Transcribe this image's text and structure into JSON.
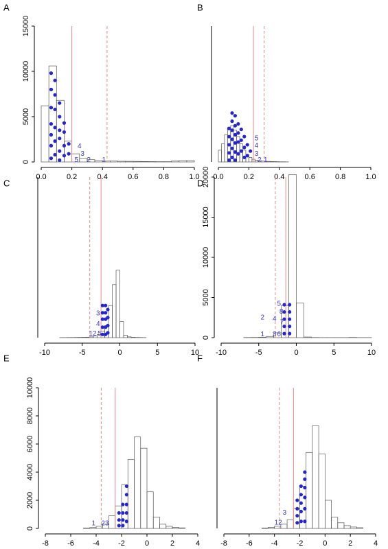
{
  "chart_data": [
    {
      "type": "histogram",
      "panel": "A",
      "bins": [
        0,
        0.05,
        0.1,
        0.15,
        0.2,
        0.25,
        0.3,
        0.35,
        0.4,
        0.45,
        0.5,
        0.55,
        0.6,
        0.65,
        0.7,
        0.75,
        0.8,
        0.85,
        0.9,
        0.95,
        1.0
      ],
      "counts": [
        6200,
        10600,
        6800,
        2300,
        900,
        400,
        250,
        150,
        120,
        100,
        80,
        70,
        60,
        50,
        40,
        30,
        30,
        100,
        150,
        150
      ],
      "xlim": [
        0,
        1.0
      ],
      "ylim": [
        0,
        15000
      ],
      "xticks": [
        {
          "value": 0,
          "label": "0.0"
        },
        {
          "value": 0.2,
          "label": "0.2"
        },
        {
          "value": 0.4,
          "label": "0.4"
        },
        {
          "value": 0.6,
          "label": "0.6"
        },
        {
          "value": 0.8,
          "label": "0.8"
        },
        {
          "value": 1.0,
          "label": "1.0"
        }
      ],
      "yticks": [
        0,
        5000,
        10000,
        15000
      ],
      "solid_line": 0.2,
      "dashed_line": 0.43,
      "points": {
        "x": [
          0.065,
          0.065,
          0.065,
          0.065,
          0.065,
          0.065,
          0.065,
          0.09,
          0.09,
          0.09,
          0.09,
          0.09,
          0.09,
          0.12,
          0.12,
          0.12,
          0.12,
          0.12,
          0.12,
          0.15,
          0.15,
          0.15,
          0.15,
          0.18,
          0.18
        ],
        "y": [
          9800,
          8000,
          6000,
          4200,
          3000,
          1800,
          400,
          9000,
          7400,
          5800,
          3800,
          2300,
          800,
          6500,
          5000,
          3500,
          2600,
          1200,
          200,
          4300,
          3300,
          1800,
          700,
          2000,
          900
        ]
      },
      "annotations": [
        {
          "label": "4",
          "x": 0.25,
          "y": 1700
        },
        {
          "label": "3",
          "x": 0.27,
          "y": 900
        },
        {
          "label": "5",
          "x": 0.23,
          "y": 200
        },
        {
          "label": "2",
          "x": 0.31,
          "y": 200
        },
        {
          "label": "1",
          "x": 0.41,
          "y": 200
        }
      ]
    },
    {
      "type": "histogram",
      "panel": "B",
      "bins": [
        0,
        0.02,
        0.04,
        0.06,
        0.08,
        0.1,
        0.12,
        0.14,
        0.16,
        0.18,
        0.2,
        0.22,
        0.24,
        0.26,
        0.28,
        0.3,
        0.32,
        0.34,
        0.36,
        0.38,
        0.4,
        0.42,
        0.44,
        0.46
      ],
      "counts": [
        1300,
        2000,
        3000,
        3800,
        4000,
        3500,
        2800,
        2000,
        1300,
        800,
        500,
        300,
        200,
        150,
        100,
        80,
        60,
        50,
        40,
        30,
        20,
        20,
        10
      ],
      "xlim": [
        0,
        1.0
      ],
      "ylim": [
        0,
        15000
      ],
      "xticks": [
        {
          "value": 0,
          "label": "0.0"
        },
        {
          "value": 0.2,
          "label": "0.2"
        },
        {
          "value": 0.4,
          "label": "0.4"
        },
        {
          "value": 0.6,
          "label": "0.6"
        },
        {
          "value": 0.8,
          "label": "0.8"
        },
        {
          "value": 1.0,
          "label": "1.0"
        }
      ],
      "solid_line": 0.23,
      "dashed_line": 0.3,
      "points": {
        "x": [
          0.07,
          0.07,
          0.07,
          0.07,
          0.07,
          0.09,
          0.09,
          0.09,
          0.09,
          0.09,
          0.09,
          0.11,
          0.11,
          0.11,
          0.11,
          0.11,
          0.11,
          0.13,
          0.13,
          0.13,
          0.13,
          0.15,
          0.15,
          0.15,
          0.17,
          0.17,
          0.17,
          0.19,
          0.19,
          0.21
        ],
        "y": [
          3700,
          2800,
          1900,
          1000,
          200,
          5400,
          4500,
          3500,
          2500,
          1500,
          500,
          5100,
          4000,
          3000,
          2100,
          1100,
          200,
          4200,
          3200,
          2200,
          900,
          3600,
          2400,
          1200,
          2800,
          1600,
          500,
          1900,
          700,
          1200
        ]
      },
      "annotations": [
        {
          "label": "5",
          "x": 0.25,
          "y": 2600
        },
        {
          "label": "4",
          "x": 0.25,
          "y": 1800
        },
        {
          "label": "3",
          "x": 0.25,
          "y": 900
        },
        {
          "label": "2",
          "x": 0.27,
          "y": 200
        },
        {
          "label": "1",
          "x": 0.31,
          "y": 200
        }
      ]
    },
    {
      "type": "histogram",
      "panel": "C",
      "bins": [
        -8,
        -7.5,
        -7,
        -6.5,
        -6,
        -5.5,
        -5,
        -4.5,
        -4,
        -3.5,
        -3,
        -2.5,
        -2,
        -1.5,
        -1,
        -0.5,
        0,
        0.5,
        1,
        1.5,
        2,
        2.5,
        3,
        3.5
      ],
      "counts": [
        10,
        10,
        20,
        20,
        30,
        40,
        50,
        60,
        100,
        200,
        400,
        800,
        1500,
        4000,
        6600,
        8400,
        2000,
        300,
        100,
        50,
        30,
        20,
        10
      ],
      "xlim": [
        -10,
        10
      ],
      "ylim": [
        0,
        20000
      ],
      "xticks": [
        -10,
        -5,
        0,
        5,
        10
      ],
      "solid_line": -2.5,
      "dashed_line": -4.0,
      "points": {
        "x": [
          -2.3,
          -2.3,
          -2.3,
          -2.3,
          -2.3,
          -1.9,
          -1.9,
          -1.9,
          -1.9,
          -1.9,
          -1.6,
          -1.6,
          -1.6,
          -1.6
        ],
        "y": [
          4000,
          3100,
          2300,
          1300,
          400,
          4000,
          3100,
          2300,
          1300,
          400,
          3500,
          2500,
          1500,
          600
        ]
      },
      "annotations": [
        {
          "label": "3",
          "x": -2.9,
          "y": 3000
        },
        {
          "label": "4",
          "x": -2.9,
          "y": 1700
        },
        {
          "label": "12",
          "x": -3.6,
          "y": 500
        },
        {
          "label": "5",
          "x": -2.7,
          "y": 500
        }
      ]
    },
    {
      "type": "histogram",
      "panel": "D",
      "bins": [
        -7,
        -6,
        -5,
        -4,
        -3,
        -2,
        -1,
        0,
        1,
        2,
        3,
        4,
        5,
        6,
        7,
        8,
        9,
        10
      ],
      "counts": [
        20,
        30,
        50,
        150,
        600,
        4000,
        20300,
        4300,
        80,
        20,
        10,
        10,
        10,
        10,
        30,
        10,
        10
      ],
      "xlim": [
        -10,
        10
      ],
      "ylim": [
        0,
        20000
      ],
      "xticks": [
        -10,
        -5,
        0,
        5,
        10
      ],
      "yticks": [
        0,
        5000,
        10000,
        15000,
        20000
      ],
      "solid_line": -1.4,
      "dashed_line": -2.8,
      "points": {
        "x": [
          -1.6,
          -1.6,
          -1.6,
          -1.6,
          -1.6,
          -0.9,
          -0.9,
          -0.9,
          -0.9,
          -0.9
        ],
        "y": [
          4100,
          3200,
          2300,
          1400,
          500,
          4100,
          3200,
          2300,
          1400,
          500
        ]
      },
      "annotations": [
        {
          "label": "5",
          "x": -2.3,
          "y": 4200
        },
        {
          "label": "8",
          "x": -2.0,
          "y": 3200
        },
        {
          "label": "4",
          "x": -2.9,
          "y": 2300
        },
        {
          "label": "7",
          "x": -1.9,
          "y": 1900
        },
        {
          "label": "2",
          "x": -4.5,
          "y": 2500
        },
        {
          "label": "1",
          "x": -4.5,
          "y": 400
        },
        {
          "label": "3",
          "x": -2.9,
          "y": 400
        },
        {
          "label": "6",
          "x": -2.3,
          "y": 400
        }
      ]
    },
    {
      "type": "histogram",
      "panel": "E",
      "bins": [
        -5,
        -4.5,
        -4,
        -3.5,
        -3,
        -2.5,
        -2,
        -1.5,
        -1,
        -0.5,
        0,
        0.5,
        1,
        1.5,
        2,
        2.5,
        3
      ],
      "counts": [
        30,
        60,
        150,
        300,
        900,
        1600,
        3100,
        4900,
        6500,
        5700,
        2600,
        800,
        300,
        150,
        80,
        40
      ],
      "xlim": [
        -8,
        4
      ],
      "ylim": [
        0,
        10000
      ],
      "xticks": [
        -8,
        -6,
        -4,
        -2,
        0,
        2,
        4
      ],
      "yticks": [
        0,
        2000,
        4000,
        6000,
        8000,
        10000
      ],
      "solid_line": -2.5,
      "dashed_line": -3.6,
      "points": {
        "x": [
          -2.2,
          -2.2,
          -2.2,
          -1.9,
          -1.9,
          -1.9,
          -1.9,
          -1.6,
          -1.6,
          -1.6,
          -1.6,
          -1.6
        ],
        "y": [
          1100,
          600,
          200,
          1700,
          1100,
          600,
          200,
          3000,
          2400,
          1700,
          1100,
          500
        ]
      },
      "annotations": [
        {
          "label": "1",
          "x": -4.2,
          "y": 350
        },
        {
          "label": "23",
          "x": -3.3,
          "y": 350
        }
      ]
    },
    {
      "type": "histogram",
      "panel": "F",
      "bins": [
        -5,
        -4.5,
        -4,
        -3.5,
        -3,
        -2.5,
        -2,
        -1.5,
        -1,
        -0.5,
        0,
        0.5,
        1,
        1.5,
        2,
        2.5,
        3
      ],
      "counts": [
        30,
        80,
        150,
        300,
        600,
        1400,
        3000,
        5400,
        7300,
        5300,
        2000,
        800,
        400,
        200,
        100,
        50
      ],
      "xlim": [
        -8,
        4
      ],
      "ylim": [
        0,
        10000
      ],
      "xticks": [
        -8,
        -6,
        -4,
        -2,
        0,
        2,
        4
      ],
      "solid_line": -2.5,
      "dashed_line": -3.6,
      "points": {
        "x": [
          -2.2,
          -2.2,
          -2.2,
          -2.2,
          -1.9,
          -1.9,
          -1.9,
          -1.9,
          -1.9,
          -1.6,
          -1.6,
          -1.6,
          -1.6,
          -1.6,
          -1.6
        ],
        "y": [
          2000,
          1400,
          900,
          400,
          3000,
          2400,
          1800,
          1200,
          500,
          4000,
          3500,
          2900,
          2200,
          1400,
          500
        ]
      },
      "annotations": [
        {
          "label": "3",
          "x": -3.2,
          "y": 1100
        },
        {
          "label": "12",
          "x": -3.7,
          "y": 400
        }
      ]
    }
  ]
}
